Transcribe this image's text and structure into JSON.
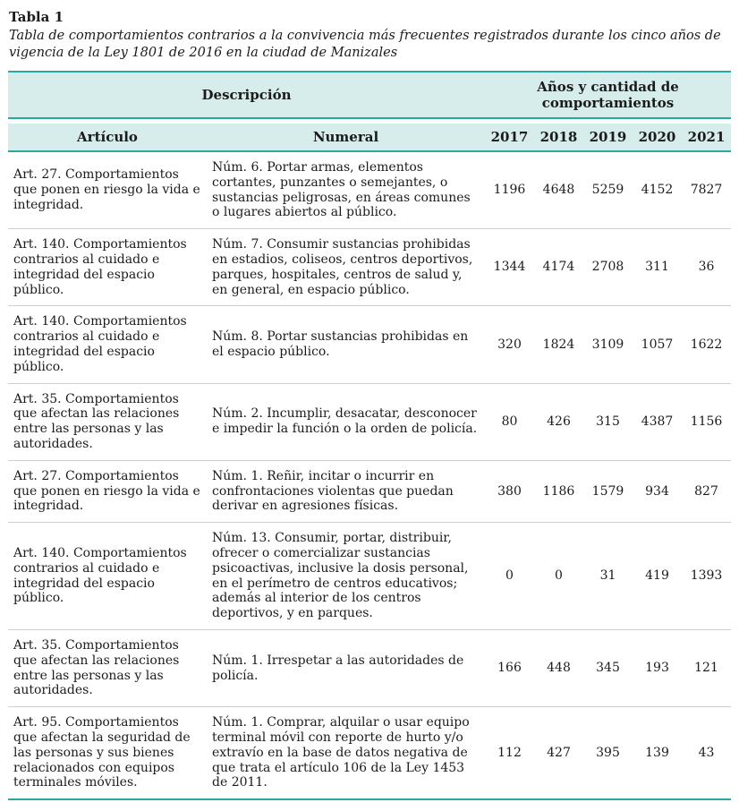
{
  "title": "Tabla 1",
  "caption": "Tabla de comportamientos contrarios a la convivencia más frecuentes registrados durante los cinco años de vigencia de la Ley 1801 de 2016 en la ciudad de Manizales",
  "table": {
    "group_headers": {
      "descripcion": "Descripción",
      "years": "Años y cantidad de comportamientos"
    },
    "columns": [
      "Artículo",
      "Numeral",
      "2017",
      "2018",
      "2019",
      "2020",
      "2021"
    ],
    "rows": [
      {
        "articulo": "Art. 27. Comportamientos que ponen en riesgo la vida e integridad.",
        "numeral": "Núm. 6. Portar armas, elementos cortantes, punzantes o semejantes, o sustancias peligrosas, en áreas comunes o lugares abiertos al público.",
        "values": [
          "1196",
          "4648",
          "5259",
          "4152",
          "7827"
        ]
      },
      {
        "articulo": "Art. 140. Comportamientos contrarios al cuidado e integridad del espacio público.",
        "numeral": "Núm. 7. Consumir sustancias prohibidas en estadios, coliseos, centros deportivos, parques, hospitales, centros de salud y, en general, en espacio público.",
        "values": [
          "1344",
          "4174",
          "2708",
          "311",
          "36"
        ]
      },
      {
        "articulo": "Art. 140. Comportamientos contrarios al cuidado e integridad del espacio público.",
        "numeral": "Núm. 8. Portar sustancias prohibidas en el espacio público.",
        "values": [
          "320",
          "1824",
          "3109",
          "1057",
          "1622"
        ]
      },
      {
        "articulo": "Art. 35. Comportamientos que afectan las relaciones entre las personas y las autoridades.",
        "numeral": "Núm. 2. Incumplir, desacatar, desconocer e impedir la función o la orden de policía.",
        "values": [
          "80",
          "426",
          "315",
          "4387",
          "1156"
        ]
      },
      {
        "articulo": "Art. 27. Comportamientos que ponen en riesgo la vida e integridad.",
        "numeral": "Núm. 1. Reñir, incitar o incurrir en confrontaciones violentas que puedan derivar en agresiones físicas.",
        "values": [
          "380",
          "1186",
          "1579",
          "934",
          "827"
        ]
      },
      {
        "articulo": "Art. 140. Comportamientos contrarios al cuidado e integridad del espacio público.",
        "numeral": "Núm. 13. Consumir, portar, distribuir, ofrecer o comercializar sustancias psicoactivas, inclusive la dosis personal, en el perímetro de centros educativos; además al interior de los centros deportivos, y en parques.",
        "values": [
          "0",
          "0",
          "31",
          "419",
          "1393"
        ]
      },
      {
        "articulo": "Art. 35. Comportamientos que afectan las relaciones entre las personas y las autoridades.",
        "numeral": "Núm. 1. Irrespetar a las autoridades de policía.",
        "values": [
          "166",
          "448",
          "345",
          "193",
          "121"
        ]
      },
      {
        "articulo": "Art. 95. Comportamientos que afectan la seguridad de las personas y sus bienes relacionados con equipos terminales móviles.",
        "numeral": "Núm. 1. Comprar, alquilar o usar equipo terminal móvil con reporte de hurto y/o extravío en la base de datos negativa de que trata el artículo 106 de la Ley 1453 de 2011.",
        "values": [
          "112",
          "427",
          "395",
          "139",
          "43"
        ]
      }
    ]
  },
  "colors": {
    "teal_line": "#2ba7a2",
    "header_bg": "#d7edec",
    "row_divider": "#cfcfcf",
    "text": "#1b1b1b"
  }
}
